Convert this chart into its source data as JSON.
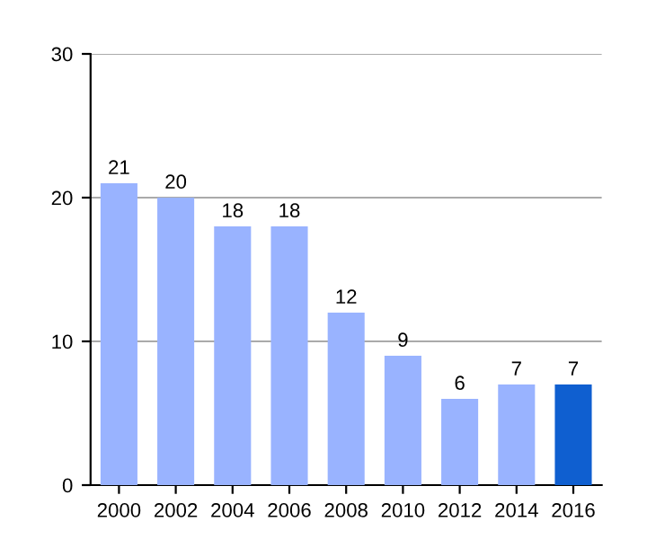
{
  "chart_data": {
    "type": "bar",
    "categories": [
      "2000",
      "2002",
      "2004",
      "2006",
      "2008",
      "2010",
      "2012",
      "2014",
      "2016"
    ],
    "values": [
      21,
      20,
      18,
      18,
      12,
      9,
      6,
      7,
      7
    ],
    "colors": [
      "#99b3ff",
      "#99b3ff",
      "#99b3ff",
      "#99b3ff",
      "#99b3ff",
      "#99b3ff",
      "#99b3ff",
      "#99b3ff",
      "#0f5fd0"
    ],
    "ylim": [
      0,
      30
    ],
    "yticks": [
      0,
      10,
      20,
      30
    ],
    "grid": "y",
    "data_labels": true
  }
}
